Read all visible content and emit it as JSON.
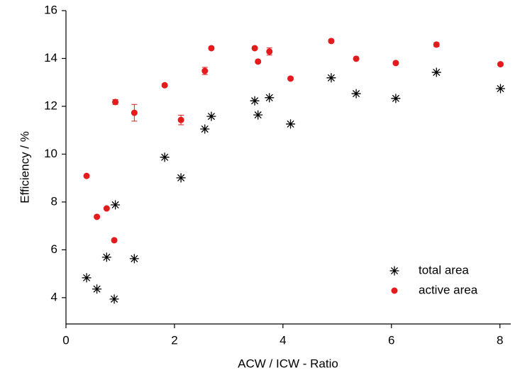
{
  "chart_data": {
    "type": "scatter",
    "x_label": "ACW / ICW - Ratio",
    "y_label": "Efficiency / %",
    "xlim": [
      0,
      8.2
    ],
    "ylim": [
      2.9,
      16
    ],
    "xticks": [
      0,
      2,
      4,
      6,
      8
    ],
    "yticks": [
      4,
      6,
      8,
      10,
      12,
      14,
      16
    ],
    "legend": "lower right",
    "series": [
      {
        "name": "total area",
        "color": "#000000",
        "marker": "asterisk",
        "x": [
          0.38,
          0.57,
          0.75,
          0.91,
          0.89,
          1.26,
          1.82,
          2.12,
          2.56,
          2.68,
          3.48,
          3.54,
          3.75,
          4.14,
          4.89,
          5.35,
          6.08,
          6.83,
          8.01
        ],
        "values": [
          4.83,
          4.36,
          5.69,
          7.88,
          3.94,
          5.63,
          9.87,
          9.01,
          11.05,
          11.58,
          12.23,
          11.64,
          12.36,
          11.26,
          13.19,
          12.53,
          12.33,
          13.42,
          12.74
        ]
      },
      {
        "name": "active area",
        "color": "#e41a1c",
        "marker": "circle",
        "x": [
          0.38,
          0.57,
          0.75,
          0.91,
          0.89,
          1.26,
          1.82,
          2.12,
          2.56,
          2.68,
          3.48,
          3.54,
          3.75,
          4.14,
          4.89,
          5.35,
          6.08,
          6.83,
          8.01
        ],
        "values": [
          9.09,
          7.38,
          7.73,
          12.18,
          6.4,
          11.73,
          12.88,
          11.43,
          13.48,
          14.43,
          14.43,
          13.87,
          14.29,
          13.16,
          14.73,
          13.99,
          13.81,
          14.58,
          13.76
        ],
        "errors": [
          0.05,
          0.05,
          0.05,
          0.1,
          0.05,
          0.35,
          0.06,
          0.2,
          0.15,
          0.06,
          0.05,
          0.05,
          0.15,
          0.06,
          0.06,
          0.05,
          0.05,
          0.08,
          0.05
        ]
      }
    ]
  }
}
